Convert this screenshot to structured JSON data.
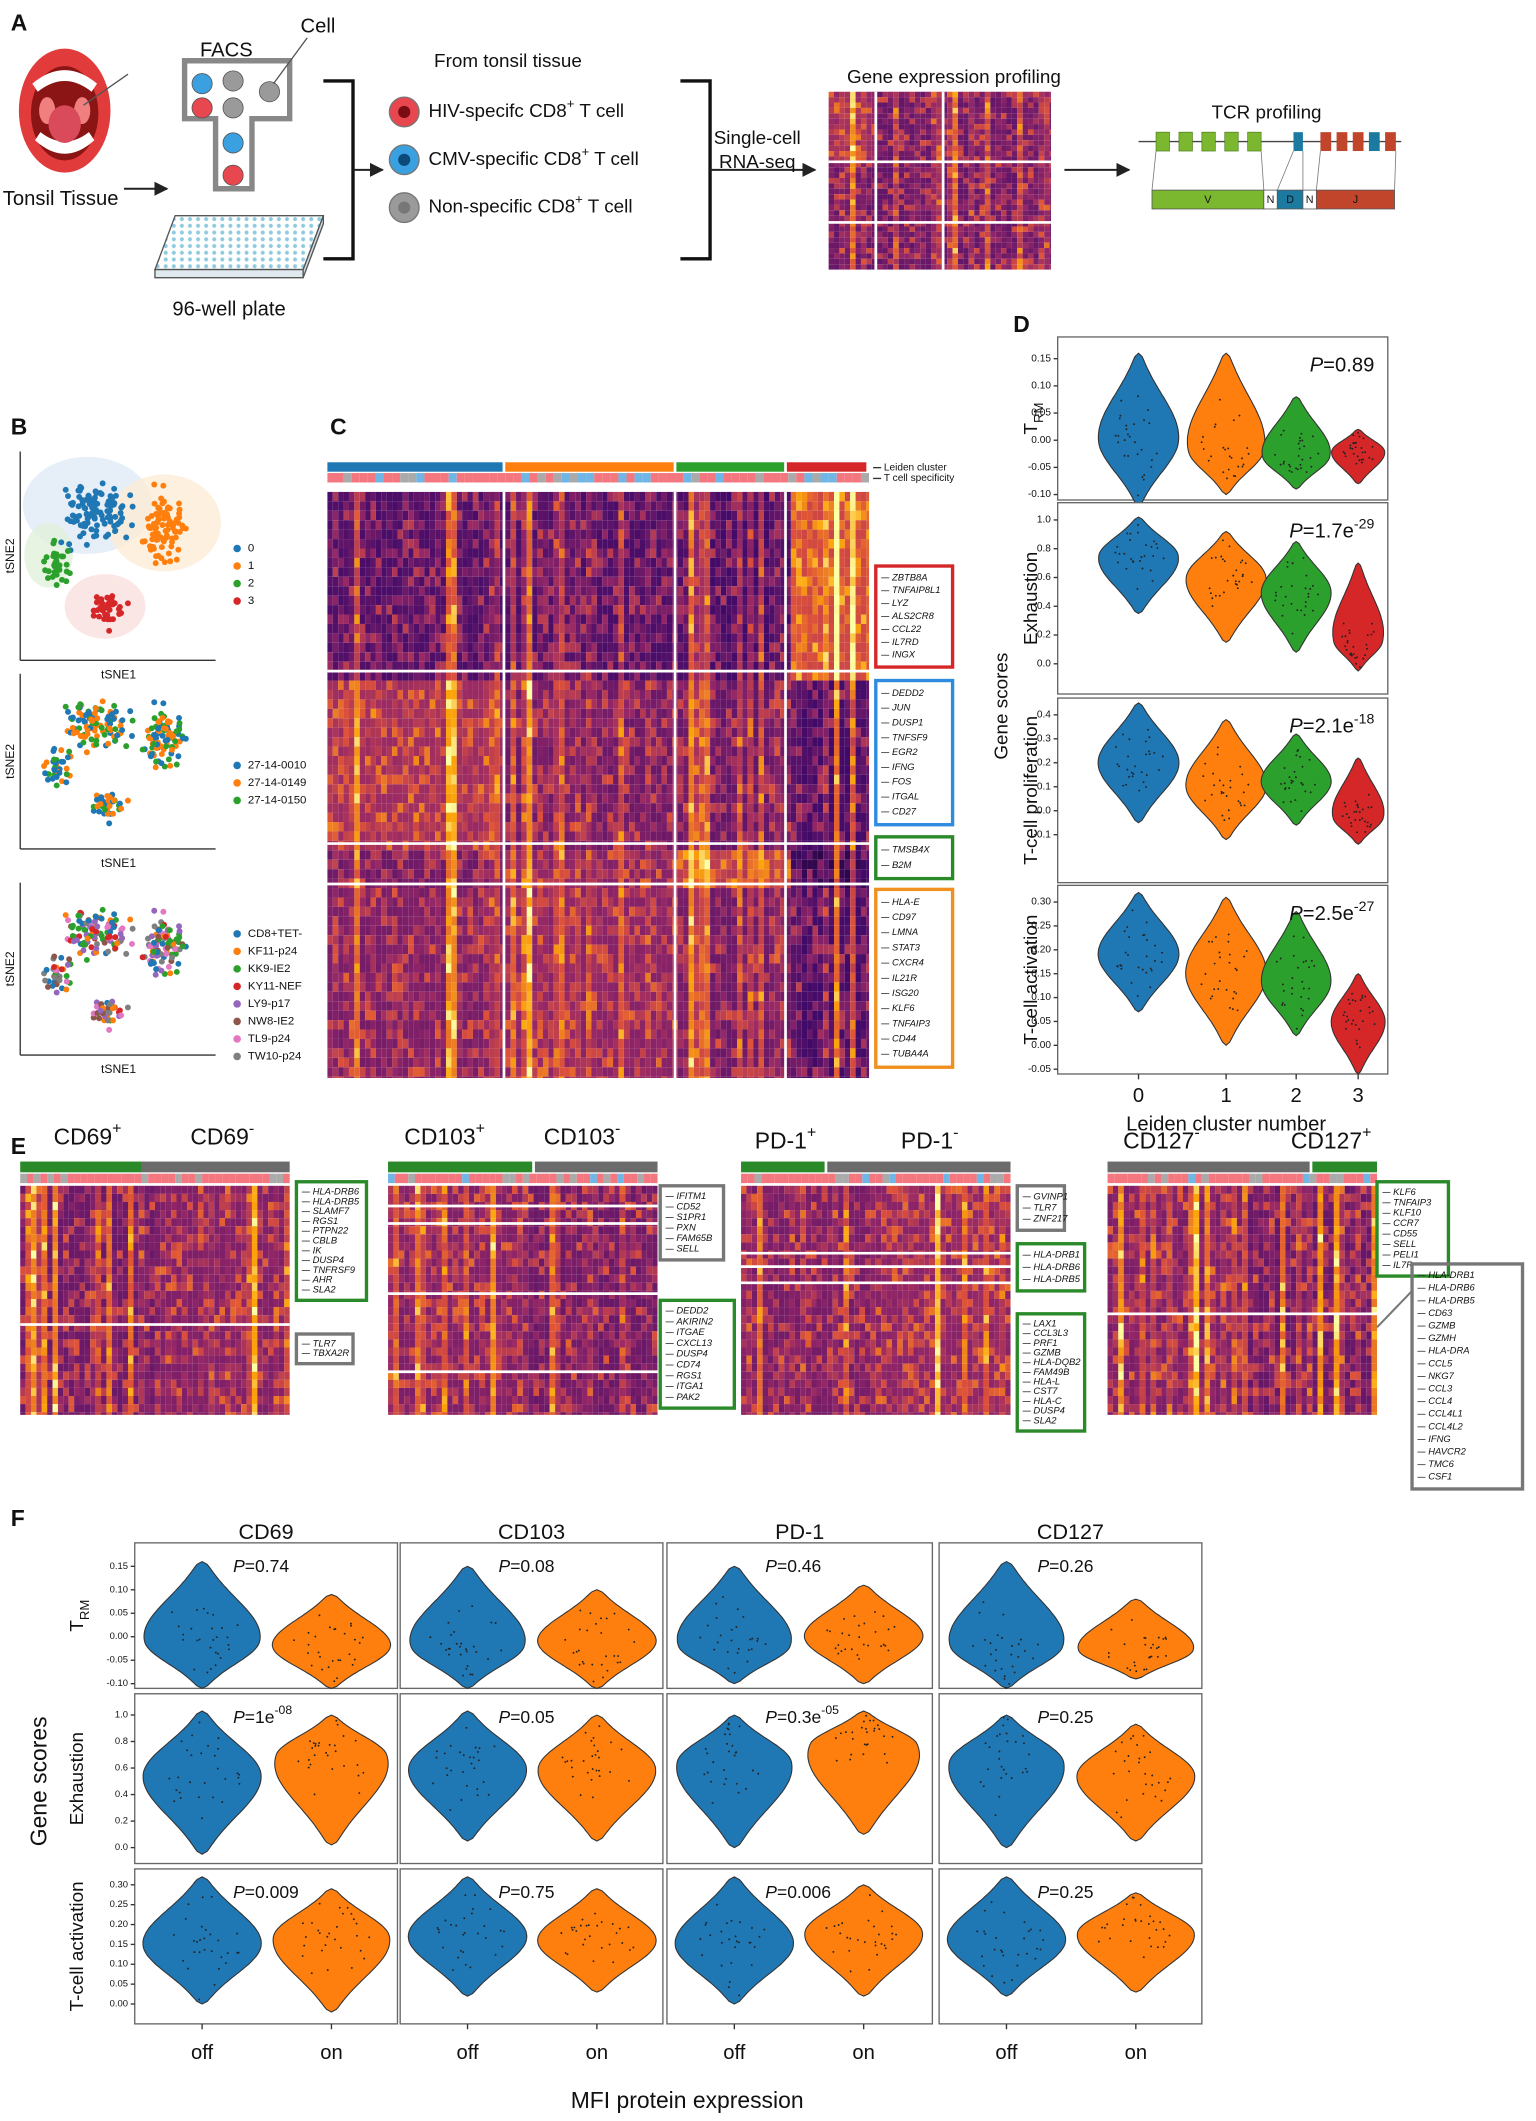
{
  "panel_labels": [
    "A",
    "B",
    "C",
    "D",
    "E",
    "F"
  ],
  "panel_a": {
    "tonsil": "Tonsil Tissue",
    "facs": "FACS",
    "cell": "Cell",
    "plate": "96-well plate",
    "source": "From tonsil tissue",
    "populations": [
      {
        "pre": "HIV-specifc CD8",
        "sup": "+",
        "post": " T cell",
        "color": "#e8474f"
      },
      {
        "pre": "CMV-specific CD8",
        "sup": "+",
        "post": " T cell",
        "color": "#3aa0e0"
      },
      {
        "pre": "Non-specific CD8",
        "sup": "+",
        "post": " T cell",
        "color": "#9a9a9a"
      }
    ],
    "method": [
      "Single-cell",
      "RNA-seq"
    ],
    "expression": "Gene expression profiling",
    "tcr": "TCR profiling",
    "segments": [
      "V",
      "N",
      "D",
      "N",
      "J"
    ]
  },
  "panel_b": {
    "x_label": "tSNE1",
    "y_label": "tSNE2",
    "plots": [
      {
        "legend": [
          {
            "name": "0",
            "color": "#1f77b4"
          },
          {
            "name": "1",
            "color": "#ff7f0e"
          },
          {
            "name": "2",
            "color": "#2ca02c"
          },
          {
            "name": "3",
            "color": "#d62728"
          }
        ]
      },
      {
        "legend": [
          {
            "name": "27-14-0010",
            "color": "#1f77b4"
          },
          {
            "name": "27-14-0149",
            "color": "#ff7f0e"
          },
          {
            "name": "27-14-0150",
            "color": "#2ca02c"
          }
        ]
      },
      {
        "legend": [
          {
            "name": "CD8+TET-",
            "color": "#1f77b4"
          },
          {
            "name": "KF11-p24",
            "color": "#ff7f0e"
          },
          {
            "name": "KK9-IE2",
            "color": "#2ca02c"
          },
          {
            "name": "KY11-NEF",
            "color": "#d62728"
          },
          {
            "name": "LY9-p17",
            "color": "#9467bd"
          },
          {
            "name": "NW8-IE2",
            "color": "#8c564b"
          },
          {
            "name": "TL9-p24",
            "color": "#e377c2"
          },
          {
            "name": "TW10-p24",
            "color": "#7f7f7f"
          }
        ]
      }
    ]
  },
  "panel_c": {
    "bars": [
      "Leiden cluster",
      "T cell specificity"
    ],
    "gene_groups": [
      {
        "color": "#d62728",
        "genes": [
          "ZBTB8A",
          "TNFAIP8L1",
          "LYZ",
          "ALS2CR8",
          "CCL22",
          "IL7RD",
          "INGX"
        ]
      },
      {
        "color": "#2d8be0",
        "genes": [
          "DEDD2",
          "JUN",
          "DUSP1",
          "TNFSF9",
          "EGR2",
          "IFNG",
          "FOS",
          "ITGAL",
          "CD27"
        ]
      },
      {
        "color": "#2a8a2a",
        "genes": [
          "TMSB4X",
          "B2M"
        ]
      },
      {
        "color": "#f0901e",
        "genes": [
          "HLA-E",
          "CD97",
          "LMNA",
          "STAT3",
          "CXCR4",
          "IL21R",
          "ISG20",
          "KLF6",
          "TNFAIP3",
          "CD44",
          "TUBA4A"
        ]
      }
    ]
  },
  "panel_d": {
    "y_label": "Gene scores",
    "x_label": "Leiden cluster number",
    "categories": [
      "0",
      "1",
      "2",
      "3"
    ],
    "colors": [
      "#1f77b4",
      "#ff7f0e",
      "#2ca02c",
      "#d62728"
    ],
    "p_symbol": "P",
    "rows": [
      {
        "label": {
          "main": "T",
          "sub": "RM"
        },
        "p": {
          "value": "=0.89"
        },
        "ylim": [
          -0.11,
          0.19
        ],
        "yticks": [
          0.15,
          {
            "value": 0.1,
            "label": "0.10"
          },
          0.05,
          {
            "value": 0,
            "label": "0.00"
          },
          -0.05,
          {
            "value": -0.1,
            "label": "-0.10"
          }
        ],
        "violins": [
          {
            "min": -0.12,
            "mode": 0.0,
            "max": 0.16
          },
          {
            "min": -0.1,
            "mode": -0.02,
            "max": 0.16
          },
          {
            "min": -0.09,
            "mode": -0.03,
            "max": 0.08
          },
          {
            "min": -0.08,
            "mode": -0.02,
            "max": 0.02
          }
        ]
      },
      {
        "label": {
          "main": "Exhaustion"
        },
        "p": {
          "value": "=1.7e",
          "sup": "-29"
        },
        "ylim": [
          -0.21,
          1.12
        ],
        "yticks": [
          {
            "value": 1,
            "label": "1.0"
          },
          0.8,
          0.6,
          0.4,
          0.2,
          {
            "value": 0,
            "label": "0.0"
          }
        ],
        "violins": [
          {
            "min": 0.35,
            "mode": 0.75,
            "max": 1.02
          },
          {
            "min": 0.15,
            "mode": 0.6,
            "max": 0.92
          },
          {
            "min": 0.08,
            "mode": 0.5,
            "max": 0.85
          },
          {
            "min": -0.05,
            "mode": 0.15,
            "max": 0.7
          }
        ]
      },
      {
        "label": {
          "main": "T-cell proliferation"
        },
        "p": {
          "value": "=2.1e",
          "sup": "-18"
        },
        "ylim": [
          -0.3,
          0.47
        ],
        "yticks": [
          0.4,
          0.3,
          0.2,
          0.1,
          {
            "value": 0,
            "label": "0.0"
          },
          -0.1
        ],
        "violins": [
          {
            "min": -0.05,
            "mode": 0.2,
            "max": 0.45
          },
          {
            "min": -0.12,
            "mode": 0.1,
            "max": 0.38
          },
          {
            "min": -0.06,
            "mode": 0.12,
            "max": 0.32
          },
          {
            "min": -0.14,
            "mode": -0.03,
            "max": 0.22
          }
        ]
      },
      {
        "label": {
          "main": "T-cell activation"
        },
        "p": {
          "value": "=2.5e",
          "sup": "-27"
        },
        "ylim": [
          -0.06,
          0.335
        ],
        "yticks": [
          {
            "value": 0.3,
            "label": "0.30"
          },
          0.25,
          {
            "value": 0.2,
            "label": "0.20"
          },
          0.15,
          {
            "value": 0.1,
            "label": "0.10"
          },
          0.05,
          {
            "value": 0,
            "label": "0.00"
          },
          -0.05
        ],
        "violins": [
          {
            "min": 0.07,
            "mode": 0.19,
            "max": 0.32
          },
          {
            "min": 0.0,
            "mode": 0.15,
            "max": 0.31
          },
          {
            "min": 0.02,
            "mode": 0.13,
            "max": 0.28
          },
          {
            "min": -0.06,
            "mode": 0.05,
            "max": 0.15
          }
        ]
      }
    ]
  },
  "panel_e": {
    "panels": [
      {
        "headers": [
          {
            "name": "CD69",
            "sup": "+"
          },
          {
            "name": "CD69",
            "sup": "-"
          }
        ],
        "boxes": [
          {
            "color": "#2a8a2a",
            "genes": [
              "HLA-DRB6",
              "HLA-DRB5",
              "SLAMF7",
              "RGS1",
              "PTPN22",
              "CBLB",
              "IK",
              "DUSP4",
              "TNFRSF9",
              "AHR",
              "SLA2"
            ]
          },
          {
            "color": "#777777",
            "genes": [
              "TLR7",
              "TBXA2R"
            ]
          }
        ]
      },
      {
        "headers": [
          {
            "name": "CD103",
            "sup": "+"
          },
          {
            "name": "CD103",
            "sup": "-"
          }
        ],
        "boxes": [
          {
            "color": "#777777",
            "genes": [
              "IFITM1",
              "CD52",
              "S1PR1",
              "PXN",
              "FAM65B",
              "SELL"
            ]
          },
          {
            "color": "#2a8a2a",
            "genes": [
              "DEDD2",
              "AKIRIN2",
              "ITGAE",
              "CXCL13",
              "DUSP4",
              "CD74",
              "RGS1",
              "ITGA1",
              "PAK2"
            ]
          }
        ]
      },
      {
        "headers": [
          {
            "name": "PD-1",
            "sup": "+"
          },
          {
            "name": "PD-1",
            "sup": "-"
          }
        ],
        "boxes": [
          {
            "color": "#777777",
            "genes": [
              "GVINP1",
              "TLR7",
              "ZNF217"
            ]
          },
          {
            "color": "#2a8a2a",
            "genes": [
              "HLA-DRB1",
              "HLA-DRB6",
              "HLA-DRB5"
            ]
          },
          {
            "color": "#2a8a2a",
            "genes": [
              "LAX1",
              "CCL3L3",
              "PRF1",
              "GZMB",
              "HLA-DQB2",
              "FAM49B",
              "HLA-L",
              "CST7",
              "HLA-C",
              "DUSP4",
              "SLA2"
            ]
          }
        ]
      },
      {
        "headers": [
          {
            "name": "CD127",
            "sup": "-"
          },
          {
            "name": "CD127",
            "sup": "+"
          }
        ],
        "boxes": [
          {
            "color": "#2a8a2a",
            "genes": [
              "KLF6",
              "TNFAIP3",
              "KLF10",
              "CCR7",
              "CD55",
              "SELL",
              "PELI1",
              "IL7R"
            ]
          },
          {
            "color": "#777777",
            "genes": [
              "HLA-DRB1",
              "HLA-DRB6",
              "HLA-DRB5",
              "CD63",
              "GZMB",
              "GZMH",
              "HLA-DRA",
              "CCL5",
              "NKG7",
              "CCL3",
              "CCL4",
              "CCL4L1",
              "CCL4L2",
              "IFNG",
              "HAVCR2",
              "TMC6",
              "CSF1"
            ]
          }
        ]
      }
    ]
  },
  "panel_f": {
    "columns": [
      "CD69",
      "CD103",
      "PD-1",
      "CD127"
    ],
    "categories": [
      "off",
      "on"
    ],
    "colors": [
      "#1f77b4",
      "#ff7f0e"
    ],
    "y_label": "Gene scores",
    "x_label": "MFI protein expression",
    "p_symbol": "P",
    "rows": [
      {
        "label": {
          "main": "T",
          "sub": "RM"
        },
        "ylim": [
          -0.11,
          0.2
        ],
        "yticks": [
          0.15,
          {
            "value": 0.1,
            "label": "0.10"
          },
          0.05,
          {
            "value": 0,
            "label": "0.00"
          },
          -0.05,
          {
            "value": -0.1,
            "label": "-0.10"
          }
        ],
        "p": [
          {
            "value": "=0.74"
          },
          {
            "value": "=0.08"
          },
          {
            "value": "=0.46"
          },
          {
            "value": "=0.26"
          }
        ],
        "violins": [
          [
            {
              "min": -0.11,
              "mode": -0.01,
              "max": 0.16
            },
            {
              "min": -0.11,
              "mode": -0.02,
              "max": 0.09
            }
          ],
          [
            {
              "min": -0.11,
              "mode": -0.02,
              "max": 0.15
            },
            {
              "min": -0.11,
              "mode": -0.01,
              "max": 0.1
            }
          ],
          [
            {
              "min": -0.1,
              "mode": -0.02,
              "max": 0.15
            },
            {
              "min": -0.1,
              "mode": 0.0,
              "max": 0.11
            }
          ],
          [
            {
              "min": -0.11,
              "mode": -0.02,
              "max": 0.16
            },
            {
              "min": -0.09,
              "mode": -0.03,
              "max": 0.08
            }
          ]
        ]
      },
      {
        "label": {
          "main": "Exhaustion"
        },
        "ylim": [
          -0.12,
          1.16
        ],
        "yticks": [
          {
            "value": 1,
            "label": "1.0"
          },
          0.8,
          0.6,
          0.4,
          0.2,
          {
            "value": 0,
            "label": "0.0"
          }
        ],
        "p": [
          {
            "value": "=1e",
            "sup": "-08"
          },
          {
            "value": "=0.05"
          },
          {
            "value": "=0.3e",
            "sup": "-05"
          },
          {
            "value": "=0.25"
          }
        ],
        "violins": [
          [
            {
              "min": -0.05,
              "mode": 0.55,
              "max": 1.03
            },
            {
              "min": 0.02,
              "mode": 0.7,
              "max": 1.0
            }
          ],
          [
            {
              "min": 0.05,
              "mode": 0.6,
              "max": 1.03
            },
            {
              "min": 0.05,
              "mode": 0.6,
              "max": 1.0
            }
          ],
          [
            {
              "min": 0.0,
              "mode": 0.65,
              "max": 1.0
            },
            {
              "min": 0.1,
              "mode": 0.78,
              "max": 1.03
            }
          ],
          [
            {
              "min": 0.0,
              "mode": 0.65,
              "max": 1.0
            },
            {
              "min": 0.05,
              "mode": 0.55,
              "max": 0.93
            }
          ]
        ]
      },
      {
        "label": {
          "main": "T-cell activation"
        },
        "ylim": [
          -0.05,
          0.34
        ],
        "yticks": [
          {
            "value": 0.3,
            "label": "0.30"
          },
          0.25,
          {
            "value": 0.2,
            "label": "0.20"
          },
          0.15,
          {
            "value": 0.1,
            "label": "0.10"
          },
          0.05,
          {
            "value": 0,
            "label": "0.00"
          }
        ],
        "p": [
          {
            "value": "=0.009"
          },
          {
            "value": "=0.75"
          },
          {
            "value": "=0.006"
          },
          {
            "value": "=0.25"
          }
        ],
        "violins": [
          [
            {
              "min": 0.0,
              "mode": 0.15,
              "max": 0.32
            },
            {
              "min": -0.02,
              "mode": 0.17,
              "max": 0.29
            }
          ],
          [
            {
              "min": 0.02,
              "mode": 0.17,
              "max": 0.32
            },
            {
              "min": 0.03,
              "mode": 0.16,
              "max": 0.29
            }
          ],
          [
            {
              "min": 0.0,
              "mode": 0.15,
              "max": 0.32
            },
            {
              "min": 0.02,
              "mode": 0.18,
              "max": 0.3
            }
          ],
          [
            {
              "min": 0.02,
              "mode": 0.16,
              "max": 0.32
            },
            {
              "min": 0.03,
              "mode": 0.18,
              "max": 0.28
            }
          ]
        ]
      }
    ]
  }
}
